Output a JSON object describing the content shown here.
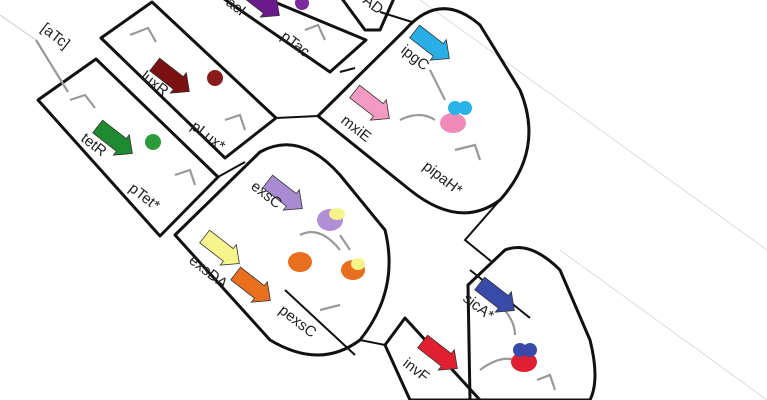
{
  "labels": [
    "[aTc]",
    "tetR",
    "pTet*",
    "luxR",
    "pLux*",
    "acI",
    "pTac",
    "AD",
    "ipgC",
    "mxiE",
    "pipaH*",
    "exsC",
    "exsDA",
    "pexsC",
    "sicA*",
    "invF"
  ]
}
